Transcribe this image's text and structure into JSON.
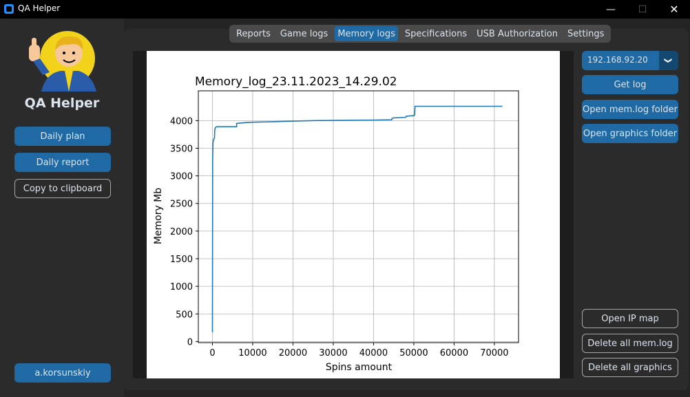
{
  "window": {
    "title": "QA Helper",
    "minimize_glyph": "—",
    "maximize_glyph": "☐",
    "close_glyph": "✕"
  },
  "sidebar": {
    "app_name": "QA Helper",
    "logo_icon": "vault-boy-thumbs-up-icon",
    "buttons": {
      "daily_plan": "Daily plan",
      "daily_report": "Daily report",
      "copy": "Copy to clipboard"
    },
    "user": "a.korsunskiy"
  },
  "tabs": [
    {
      "label": "Reports",
      "active": false
    },
    {
      "label": "Game logs",
      "active": false
    },
    {
      "label": "Memory logs",
      "active": true
    },
    {
      "label": "Specifications",
      "active": false
    },
    {
      "label": "USB Authorization",
      "active": false
    },
    {
      "label": "Settings",
      "active": false
    }
  ],
  "right": {
    "ip_value": "192.168.92.20",
    "get_log": "Get log",
    "open_mem_folder": "Open mem.log folder",
    "open_graphics_folder": "Open graphics folder",
    "open_ip_map": "Open IP map",
    "delete_mem": "Delete all mem.log",
    "delete_graphics": "Delete all graphics"
  },
  "colors": {
    "accent": "#1f6aa5",
    "line": "#1f77b4",
    "background": "#242424",
    "panel": "#2b2b2b"
  },
  "chart_data": {
    "type": "line",
    "title": "Memory_log_23.11.2023_14.29.02",
    "xlabel": "Spins amount",
    "ylabel": "Memory Mb",
    "xlim": [
      -3500,
      76000
    ],
    "ylim": [
      -20,
      4540
    ],
    "xticks": [
      0,
      10000,
      20000,
      30000,
      40000,
      50000,
      60000,
      70000
    ],
    "yticks": [
      0,
      500,
      1000,
      1500,
      2000,
      2500,
      3000,
      3500,
      4000
    ],
    "grid": true,
    "series": [
      {
        "x": [
          0,
          50,
          80,
          150,
          300,
          500,
          600,
          800,
          1000,
          5999,
          6000,
          9000,
          12000,
          15000,
          20000,
          25000,
          30000,
          35000,
          40000,
          44500,
          44600,
          45000,
          48000,
          48100,
          50000,
          50200,
          50300,
          60000,
          72000
        ],
        "y": [
          170,
          3200,
          3350,
          3600,
          3660,
          3680,
          3850,
          3880,
          3890,
          3890,
          3950,
          3970,
          3975,
          3980,
          3990,
          4000,
          4005,
          4008,
          4010,
          4015,
          4040,
          4050,
          4060,
          4080,
          4090,
          4100,
          4260,
          4260,
          4260
        ]
      }
    ]
  }
}
